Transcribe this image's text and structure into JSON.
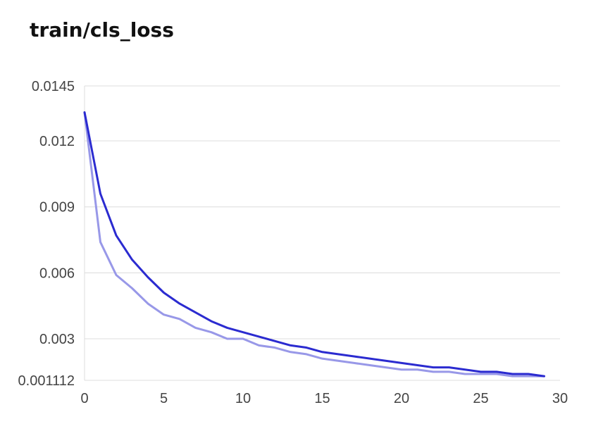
{
  "chart_data": {
    "type": "line",
    "title": "train/cls_loss",
    "xlabel": "",
    "ylabel": "",
    "xlim": [
      0,
      30
    ],
    "ylim": [
      0.001112,
      0.0145
    ],
    "x_ticks": [
      "0",
      "5",
      "10",
      "15",
      "20",
      "25",
      "30"
    ],
    "y_ticks": [
      "0.0145",
      "0.012",
      "0.009",
      "0.006",
      "0.003",
      "0.001112"
    ],
    "x_tick_values": [
      0,
      5,
      10,
      15,
      20,
      25,
      30
    ],
    "y_tick_values": [
      0.0145,
      0.012,
      0.009,
      0.006,
      0.003,
      0.001112
    ],
    "grid": "horizontal",
    "series": [
      {
        "color": "#9898e8",
        "x": [
          0,
          1,
          2,
          3,
          4,
          5,
          6,
          7,
          8,
          9,
          10,
          11,
          12,
          13,
          14,
          15,
          16,
          17,
          18,
          19,
          20,
          21,
          22,
          23,
          24,
          25,
          26,
          27,
          28,
          29
        ],
        "y": [
          0.0133,
          0.0074,
          0.0059,
          0.0053,
          0.0046,
          0.0041,
          0.0039,
          0.0035,
          0.0033,
          0.003,
          0.003,
          0.0027,
          0.0026,
          0.0024,
          0.0023,
          0.0021,
          0.002,
          0.0019,
          0.0018,
          0.0017,
          0.0016,
          0.0016,
          0.0015,
          0.0015,
          0.0014,
          0.0014,
          0.0014,
          0.0013,
          0.0013,
          0.0013
        ]
      },
      {
        "color": "#2b2bd0",
        "x": [
          0,
          1,
          2,
          3,
          4,
          5,
          6,
          7,
          8,
          9,
          10,
          11,
          12,
          13,
          14,
          15,
          16,
          17,
          18,
          19,
          20,
          21,
          22,
          23,
          24,
          25,
          26,
          27,
          28,
          29
        ],
        "y": [
          0.0133,
          0.0096,
          0.0077,
          0.0066,
          0.0058,
          0.0051,
          0.0046,
          0.0042,
          0.0038,
          0.0035,
          0.0033,
          0.0031,
          0.0029,
          0.0027,
          0.0026,
          0.0024,
          0.0023,
          0.0022,
          0.0021,
          0.002,
          0.0019,
          0.0018,
          0.0017,
          0.0017,
          0.0016,
          0.0015,
          0.0015,
          0.0014,
          0.0014,
          0.0013
        ]
      }
    ]
  }
}
